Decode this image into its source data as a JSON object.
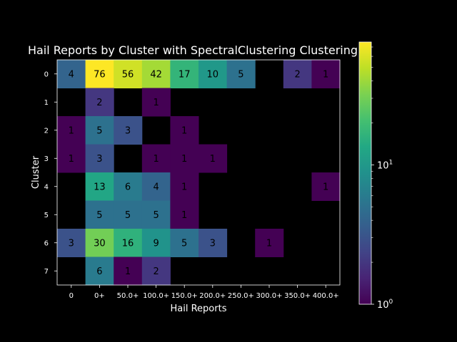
{
  "chart_data": {
    "type": "heatmap",
    "title": "Hail Reports by Cluster with SpectralClustering Clustering",
    "xlabel": "Hail Reports",
    "ylabel": "Cluster",
    "x_categories": [
      "0",
      "0+",
      "50.0+",
      "100.0+",
      "150.0+",
      "200.0+",
      "250.0+",
      "300.0+",
      "350.0+",
      "400.0+"
    ],
    "y_categories": [
      "0",
      "1",
      "2",
      "3",
      "4",
      "5",
      "6",
      "7"
    ],
    "values": [
      [
        4,
        76,
        56,
        42,
        17,
        10,
        5,
        null,
        2,
        1
      ],
      [
        null,
        2,
        null,
        1,
        null,
        null,
        null,
        null,
        null,
        null
      ],
      [
        1,
        5,
        3,
        null,
        1,
        null,
        null,
        null,
        null,
        null
      ],
      [
        1,
        3,
        null,
        1,
        1,
        1,
        null,
        null,
        null,
        null
      ],
      [
        null,
        13,
        6,
        4,
        1,
        null,
        null,
        null,
        null,
        1
      ],
      [
        null,
        5,
        5,
        5,
        1,
        null,
        null,
        null,
        null,
        null
      ],
      [
        3,
        30,
        16,
        9,
        5,
        3,
        null,
        1,
        null,
        null
      ],
      [
        null,
        6,
        1,
        2,
        null,
        null,
        null,
        null,
        null,
        null
      ]
    ],
    "colorscale": "viridis",
    "color_scale_type": "log",
    "color_range": [
      1,
      76
    ],
    "colorbar_ticks": [
      {
        "value": 1,
        "base": "10",
        "exp": "0"
      },
      {
        "value": 10,
        "base": "10",
        "exp": "1"
      }
    ],
    "background_color": "#000000"
  }
}
